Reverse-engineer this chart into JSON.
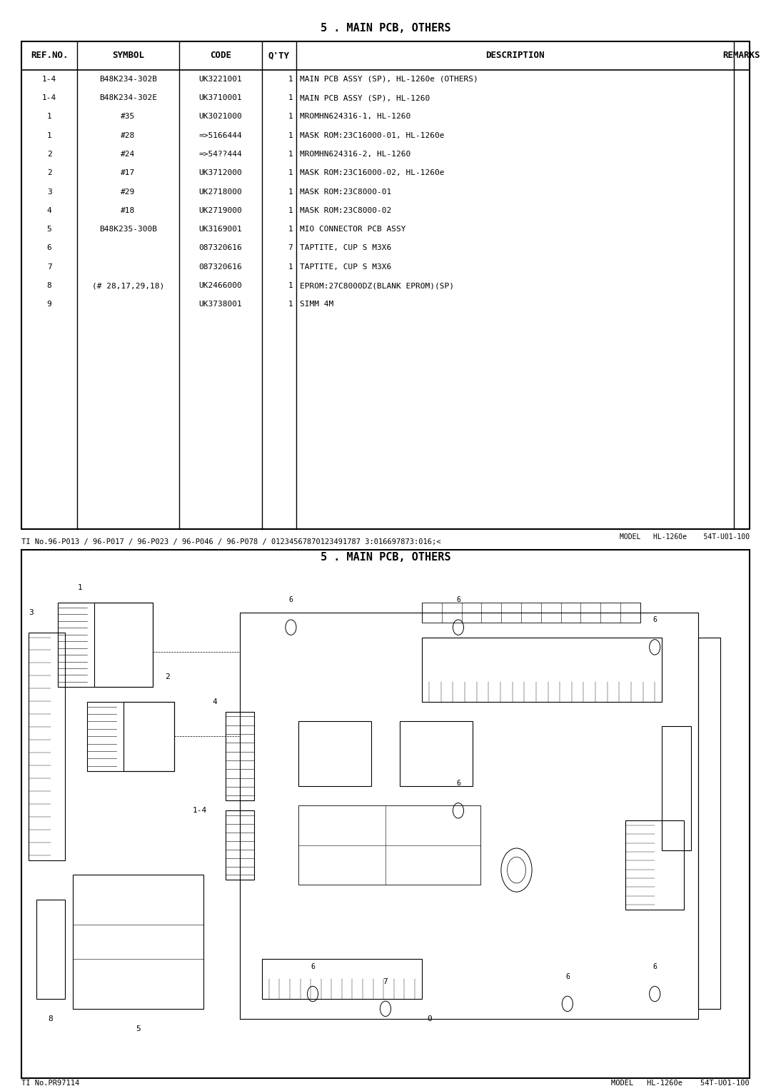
{
  "page_title": "5 . MAIN PCB, OTHERS",
  "table_headers": [
    "REF.NO.",
    "SYMBOL",
    "CODE",
    "Q'TY",
    "DESCRIPTION",
    "REMARKS"
  ],
  "table_rows": [
    [
      "1-4",
      "B48K234-302B",
      "UK3221001",
      "1",
      "MAIN PCB ASSY (SP), HL-1260e (OTHERS)",
      ""
    ],
    [
      "1-4",
      "B48K234-302E",
      "UK3710001",
      "1",
      "MAIN PCB ASSY (SP), HL-1260",
      ""
    ],
    [
      "1",
      "#35",
      "UK3021000",
      "1",
      "MROMHN624316-1, HL-1260",
      ""
    ],
    [
      "1",
      "#28",
      "=>5166444",
      "1",
      "MASK ROM:23C16000-01, HL-1260e",
      ""
    ],
    [
      "2",
      "#24",
      "=>54??444",
      "1",
      "MROMHN624316-2, HL-1260",
      ""
    ],
    [
      "2",
      "#17",
      "UK3712000",
      "1",
      "MASK ROM:23C16000-02, HL-1260e",
      ""
    ],
    [
      "3",
      "#29",
      "UK2718000",
      "1",
      "MASK ROM:23C8000-01",
      ""
    ],
    [
      "4",
      "#18",
      "UK2719000",
      "1",
      "MASK ROM:23C8000-02",
      ""
    ],
    [
      "5",
      "B48K235-300B",
      "UK3169001",
      "1",
      "MIO CONNECTOR PCB ASSY",
      ""
    ],
    [
      "6",
      "",
      "087320616",
      "7",
      "TAPTITE, CUP S M3X6",
      ""
    ],
    [
      "7",
      "",
      "087320616",
      "1",
      "TAPTITE, CUP S M3X6",
      ""
    ],
    [
      "8",
      "(# 28,17,29,18)",
      "UK2466000",
      "1",
      "EPROM:27C8000DZ(BLANK EPROM)(SP)",
      ""
    ],
    [
      "9",
      "",
      "UK3738001",
      "1",
      "SIMM 4M",
      ""
    ]
  ],
  "bottom_left_text": "TI No.PR97114",
  "bottom_right_text": "MODEL   HL-1260e    54T-U01-100",
  "mid_right_text": "MODEL   HL-1260e    54T-U01-100",
  "ti_line": "TI No.96-P013 / 96-P017 / 96-P023 / 96-P046 / 96-P078 / 01234567870123491787 3:016697873:016;<",
  "diagram_title": "5 . MAIN PCB, OTHERS",
  "background_color": "#ffffff",
  "font_size_header": 9,
  "font_size_body": 8,
  "font_size_title": 11
}
